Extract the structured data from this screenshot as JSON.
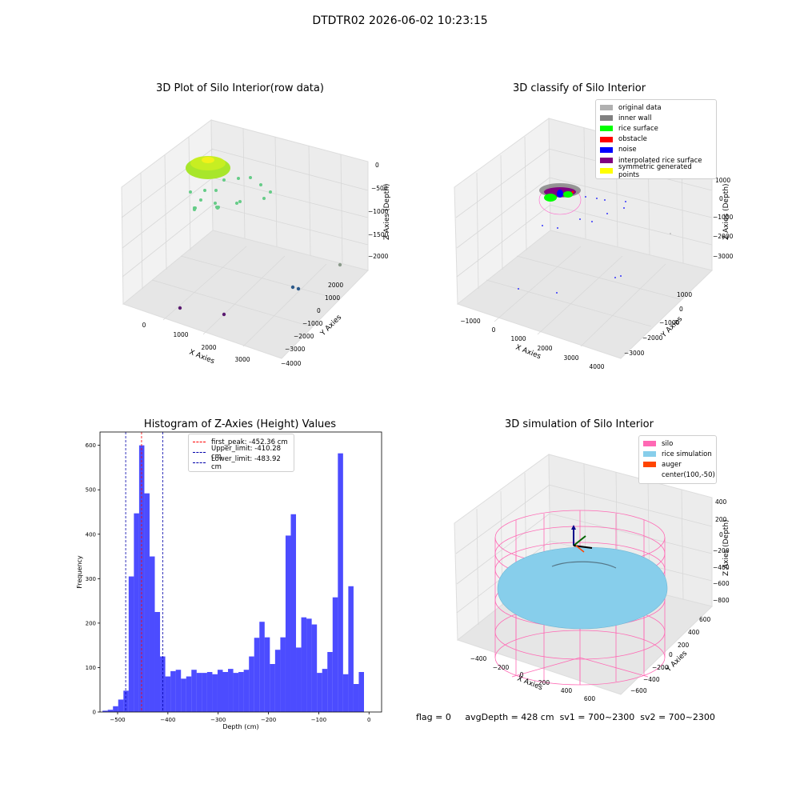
{
  "figure": {
    "suptitle": "DTDTR02 2026-06-02 10:23:15",
    "status": {
      "flag": "flag = 0",
      "avg_depth": "avgDepth = 428 cm",
      "sv1": "sv1 = 700~2300",
      "sv2": "sv2 = 700~2300"
    }
  },
  "panels": {
    "raw": {
      "title": "3D Plot of Silo Interior(row data)",
      "xlabel": "X Axies",
      "ylabel": "Y Axies",
      "zlabel": "Z Axies (Depth)",
      "xticks": [
        "0",
        "1000",
        "2000",
        "3000"
      ],
      "yticks": [
        "2000",
        "1000",
        "0",
        "−1000",
        "−2000",
        "−3000",
        "−4000"
      ],
      "zticks": [
        "0",
        "−500",
        "−1000",
        "−1500",
        "−2000"
      ]
    },
    "classify": {
      "title": "3D classify of Silo Interior",
      "xlabel": "X Axies",
      "ylabel": "Y Axies",
      "zlabel": "Z Axies (Depth)",
      "xticks": [
        "−1000",
        "0",
        "1000",
        "2000",
        "3000",
        "4000"
      ],
      "yticks": [
        "1000",
        "0",
        "−1000",
        "−2000",
        "−3000"
      ],
      "zticks": [
        "1000",
        "0",
        "−1000",
        "−2000",
        "−3000"
      ],
      "legend": [
        {
          "label": "original data",
          "color": "#b0b0b0"
        },
        {
          "label": "inner wall",
          "color": "#808080"
        },
        {
          "label": "rice surface",
          "color": "#00ff00"
        },
        {
          "label": "obstacle",
          "color": "#ff0000"
        },
        {
          "label": "noise",
          "color": "#0000ff"
        },
        {
          "label": "interpolated rice surface",
          "color": "#800080"
        },
        {
          "label": "symmetric generated points",
          "color": "#ffff00"
        }
      ]
    },
    "simulation": {
      "title": "3D simulation of Silo Interior",
      "xlabel": "X Axies",
      "ylabel": "Y Axies",
      "zlabel": "Z Axies (Depth)",
      "xticks": [
        "−400",
        "−200",
        "0",
        "200",
        "400",
        "600"
      ],
      "yticks": [
        "600",
        "400",
        "200",
        "0",
        "−200",
        "−400",
        "−600"
      ],
      "zticks": [
        "400",
        "200",
        "0",
        "−200",
        "−400",
        "−600",
        "−800"
      ],
      "legend": [
        {
          "label": "silo",
          "color": "#ff69b4"
        },
        {
          "label": "rice simulation",
          "color": "#87ceeb"
        },
        {
          "label": "auger",
          "color": "#ff4500"
        },
        {
          "label": "center(100,-50)",
          "color": "none"
        }
      ]
    }
  },
  "chart_data": {
    "type": "bar",
    "title": "Histogram of Z-Axies (Height) Values",
    "xlabel": "Depth (cm)",
    "ylabel": "Frequency",
    "xlim": [
      -535,
      25
    ],
    "ylim": [
      0,
      630
    ],
    "xticks": [
      -500,
      -400,
      -300,
      -200,
      -100,
      0
    ],
    "yticks": [
      0,
      100,
      200,
      300,
      400,
      500,
      600
    ],
    "bar_color": "#0000ff",
    "bin_start": -530,
    "bin_width": 10.4,
    "values": [
      3,
      5,
      13,
      28,
      48,
      305,
      447,
      600,
      492,
      350,
      225,
      125,
      80,
      92,
      95,
      75,
      80,
      95,
      88,
      88,
      90,
      85,
      95,
      90,
      97,
      88,
      90,
      95,
      125,
      167,
      203,
      168,
      108,
      140,
      168,
      397,
      445,
      145,
      213,
      210,
      197,
      88,
      97,
      135,
      258,
      582,
      85,
      283,
      63,
      90
    ],
    "reference_lines": [
      {
        "name": "first_peak: -452.36 cm",
        "x": -452.36,
        "color": "#ff0000"
      },
      {
        "name": "Upper_limit: -410.28 cm",
        "x": -410.28,
        "color": "#0000aa"
      },
      {
        "name": "Lower_limit: -483.92 cm",
        "x": -483.92,
        "color": "#0000aa"
      }
    ]
  }
}
